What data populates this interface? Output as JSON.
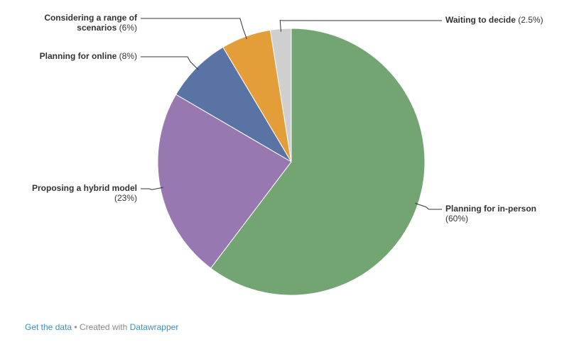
{
  "chart_data": {
    "type": "pie",
    "title": "",
    "start_angle_deg": 0,
    "direction": "clockwise",
    "slices": [
      {
        "label": "Planning for in-person",
        "label_lines": [
          "Planning for in-person"
        ],
        "value": 60,
        "pct_text": "(60%)",
        "color": "#72a572"
      },
      {
        "label": "Proposing a hybrid model",
        "label_lines": [
          "Proposing a hybrid model"
        ],
        "value": 23,
        "pct_text": "(23%)",
        "color": "#9878b0"
      },
      {
        "label": "Planning for online",
        "label_lines": [
          "Planning for online"
        ],
        "value": 8,
        "pct_text": "(8%)",
        "color": "#5a73a5"
      },
      {
        "label": "Considering a range of scenarios",
        "label_lines": [
          "Considering a range of",
          "scenarios"
        ],
        "value": 6,
        "pct_text": "(6%)",
        "color": "#e39e3a"
      },
      {
        "label": "Waiting to decide",
        "label_lines": [
          "Waiting to decide"
        ],
        "value": 2.5,
        "pct_text": "(2.5%)",
        "color": "#cfcfcf"
      }
    ]
  },
  "footer": {
    "get_data": "Get the data",
    "separator": " • Created with ",
    "datawrapper": "Datawrapper"
  }
}
